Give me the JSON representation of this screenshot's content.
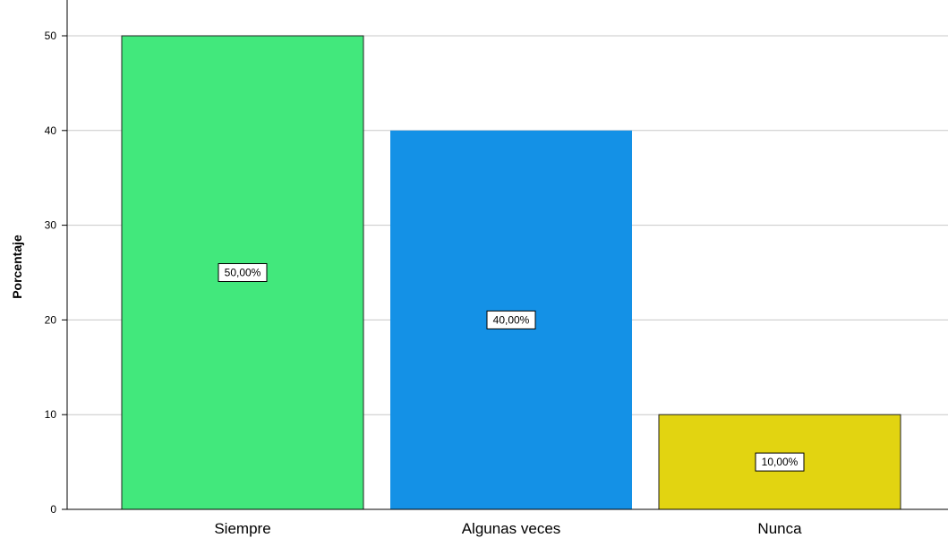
{
  "chart_data": {
    "type": "bar",
    "categories": [
      "Siempre",
      "Algunas veces",
      "Nunca"
    ],
    "values": [
      50,
      40,
      10
    ],
    "data_labels": [
      "50,00%",
      "40,00%",
      "10,00%"
    ],
    "colors": [
      "#42e87c",
      "#1491e6",
      "#e2d411"
    ],
    "ylabel": "Porcentaje",
    "ylim": [
      0,
      50
    ],
    "yticks": [
      "0",
      "10",
      "20",
      "30",
      "40",
      "50"
    ],
    "yticks_values": [
      0,
      10,
      20,
      30,
      40,
      50
    ],
    "grid": true
  }
}
